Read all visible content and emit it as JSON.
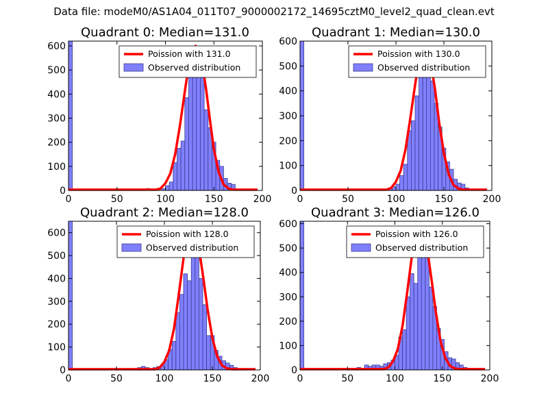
{
  "figure_title": "Data file: modeM0/AS1A04_011T07_9000002172_14695cztM0_level2_quad_clean.evt",
  "colors": {
    "fit": "#ff0000",
    "bar_fill": "#8080ff",
    "bar_edge": "#3a3a8c",
    "axis": "#000000"
  },
  "chart_data": [
    {
      "type": "bar",
      "title": "Quadrant 0: Median=131.0",
      "xlim": [
        0,
        200
      ],
      "ylim": [
        0,
        620
      ],
      "xticks": [
        0,
        50,
        100,
        150,
        200
      ],
      "yticks": [
        0,
        100,
        200,
        300,
        400,
        500,
        600
      ],
      "legend": {
        "placement": "top-right",
        "fit_label": "Poission with 131.0",
        "hist_label": "Observed distribution"
      },
      "bin_width": 4,
      "bins": [
        {
          "x": 0,
          "value": 620
        },
        {
          "x": 64,
          "value": 3
        },
        {
          "x": 68,
          "value": 3
        },
        {
          "x": 80,
          "value": 8
        },
        {
          "x": 96,
          "value": 7
        },
        {
          "x": 100,
          "value": 20
        },
        {
          "x": 104,
          "value": 35
        },
        {
          "x": 108,
          "value": 115
        },
        {
          "x": 112,
          "value": 175
        },
        {
          "x": 116,
          "value": 205
        },
        {
          "x": 120,
          "value": 385
        },
        {
          "x": 124,
          "value": 520
        },
        {
          "x": 128,
          "value": 570
        },
        {
          "x": 132,
          "value": 560
        },
        {
          "x": 136,
          "value": 480
        },
        {
          "x": 140,
          "value": 335
        },
        {
          "x": 144,
          "value": 260
        },
        {
          "x": 148,
          "value": 200
        },
        {
          "x": 152,
          "value": 125
        },
        {
          "x": 156,
          "value": 100
        },
        {
          "x": 160,
          "value": 50
        },
        {
          "x": 164,
          "value": 30
        },
        {
          "x": 168,
          "value": 25
        },
        {
          "x": 172,
          "value": 5
        },
        {
          "x": 176,
          "value": 3
        }
      ],
      "fit_curve": {
        "x": [
          0,
          90,
          95,
          100,
          105,
          110,
          115,
          120,
          124,
          128,
          131,
          134,
          138,
          142,
          146,
          150,
          155,
          160,
          165,
          170,
          180,
          195
        ],
        "y": [
          3,
          3,
          8,
          30,
          70,
          150,
          270,
          410,
          520,
          580,
          600,
          585,
          525,
          420,
          290,
          170,
          75,
          25,
          8,
          3,
          3,
          3
        ]
      }
    },
    {
      "type": "bar",
      "title": "Quadrant 1: Median=130.0",
      "xlim": [
        0,
        200
      ],
      "ylim": [
        0,
        600
      ],
      "xticks": [
        0,
        50,
        100,
        150,
        200
      ],
      "yticks": [
        0,
        100,
        200,
        300,
        400,
        500,
        600
      ],
      "legend": {
        "placement": "top-right",
        "fit_label": "Poission with 130.0",
        "hist_label": "Observed distribution"
      },
      "bin_width": 4,
      "bins": [
        {
          "x": 0,
          "value": 600
        },
        {
          "x": 68,
          "value": 5
        },
        {
          "x": 76,
          "value": 5
        },
        {
          "x": 88,
          "value": 5
        },
        {
          "x": 92,
          "value": 10
        },
        {
          "x": 96,
          "value": 15
        },
        {
          "x": 100,
          "value": 25
        },
        {
          "x": 104,
          "value": 60
        },
        {
          "x": 108,
          "value": 105
        },
        {
          "x": 112,
          "value": 240
        },
        {
          "x": 116,
          "value": 280
        },
        {
          "x": 120,
          "value": 380
        },
        {
          "x": 124,
          "value": 465
        },
        {
          "x": 128,
          "value": 490
        },
        {
          "x": 132,
          "value": 540
        },
        {
          "x": 136,
          "value": 440
        },
        {
          "x": 140,
          "value": 350
        },
        {
          "x": 144,
          "value": 255
        },
        {
          "x": 148,
          "value": 170
        },
        {
          "x": 152,
          "value": 115
        },
        {
          "x": 156,
          "value": 85
        },
        {
          "x": 160,
          "value": 45
        },
        {
          "x": 164,
          "value": 30
        },
        {
          "x": 168,
          "value": 25
        },
        {
          "x": 172,
          "value": 10
        },
        {
          "x": 176,
          "value": 5
        }
      ],
      "fit_curve": {
        "x": [
          0,
          90,
          95,
          100,
          105,
          110,
          115,
          120,
          124,
          127,
          130,
          133,
          137,
          141,
          145,
          150,
          155,
          160,
          165,
          170,
          180,
          195
        ],
        "y": [
          3,
          3,
          10,
          35,
          80,
          165,
          290,
          425,
          520,
          560,
          575,
          560,
          500,
          400,
          275,
          150,
          65,
          22,
          8,
          3,
          3,
          3
        ]
      }
    },
    {
      "type": "bar",
      "title": "Quadrant 2: Median=128.0",
      "xlim": [
        0,
        200
      ],
      "ylim": [
        0,
        650
      ],
      "xticks": [
        0,
        50,
        100,
        150,
        200
      ],
      "yticks": [
        0,
        100,
        200,
        300,
        400,
        500,
        600
      ],
      "legend": {
        "placement": "top-right",
        "fit_label": "Poission with 128.0",
        "hist_label": "Observed distribution"
      },
      "bin_width": 4,
      "bins": [
        {
          "x": 0,
          "value": 650
        },
        {
          "x": 64,
          "value": 3
        },
        {
          "x": 72,
          "value": 10
        },
        {
          "x": 76,
          "value": 15
        },
        {
          "x": 80,
          "value": 10
        },
        {
          "x": 88,
          "value": 10
        },
        {
          "x": 92,
          "value": 15
        },
        {
          "x": 96,
          "value": 20
        },
        {
          "x": 100,
          "value": 45
        },
        {
          "x": 104,
          "value": 90
        },
        {
          "x": 108,
          "value": 125
        },
        {
          "x": 112,
          "value": 250
        },
        {
          "x": 116,
          "value": 330
        },
        {
          "x": 120,
          "value": 420
        },
        {
          "x": 124,
          "value": 390
        },
        {
          "x": 128,
          "value": 600
        },
        {
          "x": 132,
          "value": 570
        },
        {
          "x": 136,
          "value": 400
        },
        {
          "x": 140,
          "value": 285
        },
        {
          "x": 144,
          "value": 150
        },
        {
          "x": 148,
          "value": 150
        },
        {
          "x": 152,
          "value": 85
        },
        {
          "x": 156,
          "value": 60
        },
        {
          "x": 160,
          "value": 40
        },
        {
          "x": 164,
          "value": 30
        },
        {
          "x": 168,
          "value": 20
        },
        {
          "x": 172,
          "value": 10
        },
        {
          "x": 176,
          "value": 5
        }
      ],
      "fit_curve": {
        "x": [
          0,
          90,
          95,
          100,
          105,
          110,
          115,
          120,
          124,
          127,
          130,
          133,
          137,
          141,
          145,
          150,
          155,
          160,
          165,
          170,
          180,
          195
        ],
        "y": [
          3,
          3,
          10,
          35,
          85,
          180,
          330,
          490,
          580,
          615,
          615,
          580,
          505,
          390,
          265,
          140,
          60,
          20,
          7,
          3,
          3,
          3
        ]
      }
    },
    {
      "type": "bar",
      "title": "Quadrant 3: Median=126.0",
      "xlim": [
        0,
        200
      ],
      "ylim": [
        0,
        610
      ],
      "xticks": [
        0,
        50,
        100,
        150,
        200
      ],
      "yticks": [
        0,
        100,
        200,
        300,
        400,
        500,
        600
      ],
      "legend": {
        "placement": "top-right",
        "fit_label": "Poission with 126.0",
        "hist_label": "Observed distribution"
      },
      "bin_width": 4,
      "bins": [
        {
          "x": 0,
          "value": 610
        },
        {
          "x": 60,
          "value": 10
        },
        {
          "x": 68,
          "value": 20
        },
        {
          "x": 72,
          "value": 15
        },
        {
          "x": 76,
          "value": 20
        },
        {
          "x": 80,
          "value": 20
        },
        {
          "x": 84,
          "value": 15
        },
        {
          "x": 88,
          "value": 25
        },
        {
          "x": 92,
          "value": 30
        },
        {
          "x": 96,
          "value": 40
        },
        {
          "x": 100,
          "value": 60
        },
        {
          "x": 104,
          "value": 135
        },
        {
          "x": 108,
          "value": 165
        },
        {
          "x": 112,
          "value": 300
        },
        {
          "x": 116,
          "value": 395
        },
        {
          "x": 120,
          "value": 355
        },
        {
          "x": 124,
          "value": 555
        },
        {
          "x": 128,
          "value": 530
        },
        {
          "x": 132,
          "value": 470
        },
        {
          "x": 136,
          "value": 340
        },
        {
          "x": 140,
          "value": 260
        },
        {
          "x": 144,
          "value": 170
        },
        {
          "x": 148,
          "value": 125
        },
        {
          "x": 152,
          "value": 75
        },
        {
          "x": 156,
          "value": 50
        },
        {
          "x": 160,
          "value": 45
        },
        {
          "x": 164,
          "value": 30
        },
        {
          "x": 168,
          "value": 20
        },
        {
          "x": 172,
          "value": 10
        },
        {
          "x": 176,
          "value": 5
        }
      ],
      "fit_curve": {
        "x": [
          0,
          88,
          93,
          98,
          103,
          108,
          113,
          118,
          122,
          125,
          128,
          131,
          135,
          139,
          143,
          148,
          153,
          158,
          163,
          168,
          180,
          195
        ],
        "y": [
          3,
          3,
          10,
          35,
          85,
          180,
          320,
          470,
          555,
          580,
          575,
          545,
          470,
          360,
          240,
          120,
          50,
          17,
          6,
          3,
          3,
          3
        ]
      }
    }
  ]
}
